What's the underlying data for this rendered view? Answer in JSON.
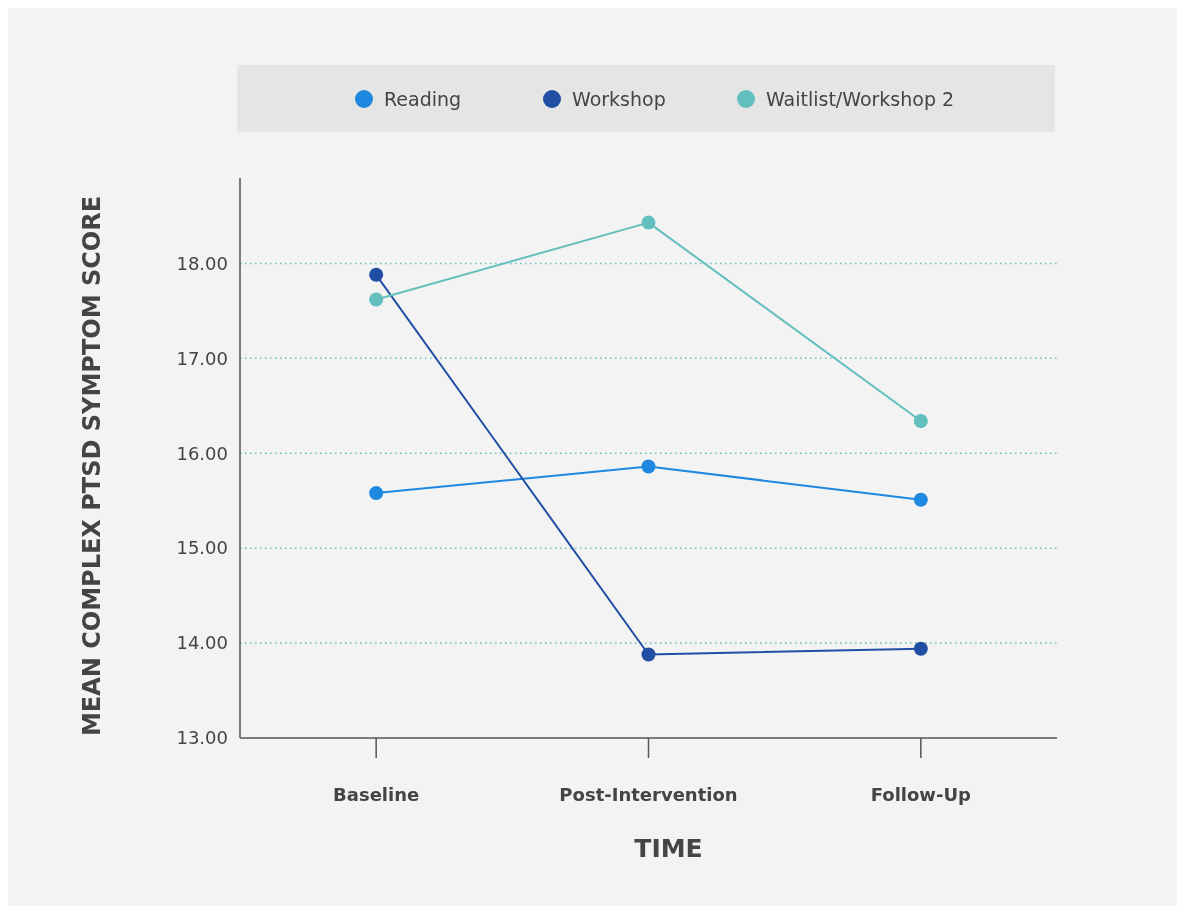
{
  "chart_data": {
    "type": "line",
    "xlabel": "TIME",
    "ylabel": "MEAN COMPLEX PTSD SYMPTOM SCORE",
    "categories": [
      "Baseline",
      "Post-Intervention",
      "Follow-Up"
    ],
    "series": [
      {
        "name": "Reading",
        "color": "#1e88e0",
        "values": [
          15.58,
          15.86,
          15.51
        ]
      },
      {
        "name": "Workshop",
        "color": "#1f4ea3",
        "values": [
          17.88,
          13.88,
          13.94
        ]
      },
      {
        "name": "Waitlist/Workshop 2",
        "color": "#62bfbd",
        "values": [
          17.62,
          18.43,
          16.34
        ]
      }
    ],
    "ylim": [
      13,
      18.9
    ],
    "yticks": [
      {
        "value": 13,
        "label": "13.00"
      },
      {
        "value": 14,
        "label": "14.00"
      },
      {
        "value": 15,
        "label": "15.00"
      },
      {
        "value": 16,
        "label": "16.00"
      },
      {
        "value": 17,
        "label": "17.00"
      },
      {
        "value": 18,
        "label": "18.00"
      }
    ],
    "grid": "y",
    "legend": "top",
    "marker": "circle",
    "line_style": "solid"
  }
}
